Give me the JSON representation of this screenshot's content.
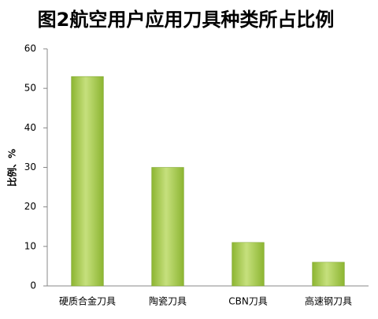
{
  "chart_data": {
    "type": "bar",
    "title": "图2航空用户应用刀具种类所占比例",
    "y_label": "比例、%",
    "categories": [
      "硬质合金刀具",
      "陶瓷刀具",
      "CBN刀具",
      "高速钢刀具"
    ],
    "values": [
      53,
      30,
      11,
      6
    ],
    "color": "#8cb531",
    "ylim": [
      0,
      60
    ],
    "yticks": [
      0,
      10,
      20,
      30,
      40,
      50,
      60
    ],
    "grid": false
  }
}
